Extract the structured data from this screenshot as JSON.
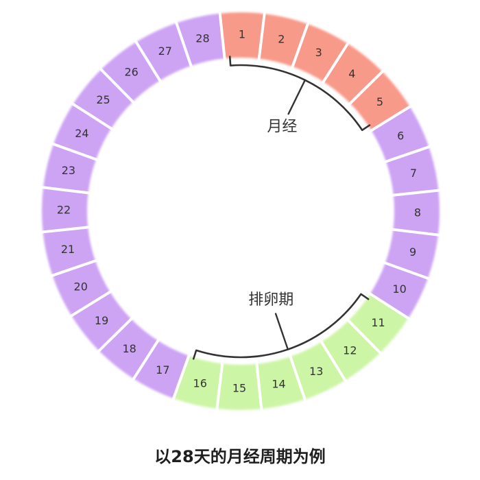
{
  "cycle": {
    "total_days": 28,
    "days": [
      "1",
      "2",
      "3",
      "4",
      "5",
      "6",
      "7",
      "8",
      "9",
      "10",
      "11",
      "12",
      "13",
      "14",
      "15",
      "16",
      "17",
      "18",
      "19",
      "20",
      "21",
      "22",
      "23",
      "24",
      "25",
      "26",
      "27",
      "28"
    ],
    "phases": [
      {
        "key": "menstruation",
        "label": "月经",
        "start_day": 1,
        "end_day": 5,
        "color": "#f89a8a"
      },
      {
        "key": "ovulation",
        "label": "排卵期",
        "start_day": 11,
        "end_day": 16,
        "color": "#cdf5a6"
      }
    ],
    "default_color": "#cda3f4"
  },
  "caption": "以28天的月经周期为例"
}
